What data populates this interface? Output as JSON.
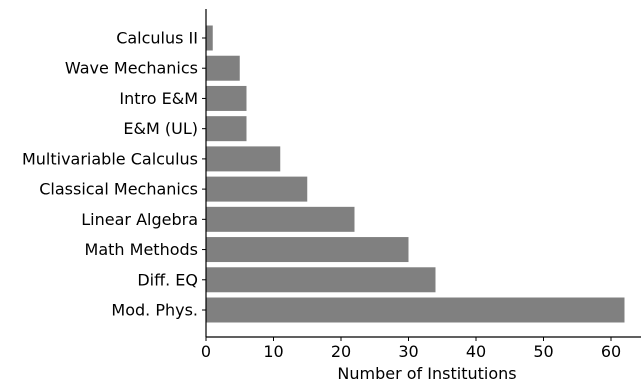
{
  "chart_data": {
    "type": "bar",
    "orientation": "horizontal",
    "title": "",
    "xlabel": "Number of Institutions",
    "ylabel": "",
    "categories": [
      "Calculus II",
      "Wave Mechanics",
      "Intro E&M",
      "E&M (UL)",
      "Multivariable Calculus",
      "Classical Mechanics",
      "Linear Algebra",
      "Math Methods",
      "Diff. EQ",
      "Mod. Phys."
    ],
    "values": [
      1,
      5,
      6,
      6,
      11,
      15,
      22,
      30,
      34,
      62
    ],
    "xlim": [
      0,
      64
    ],
    "xticks": [
      0,
      10,
      20,
      30,
      40,
      50,
      60
    ],
    "grid": false,
    "legend": "none",
    "bar_color": "#808080"
  }
}
